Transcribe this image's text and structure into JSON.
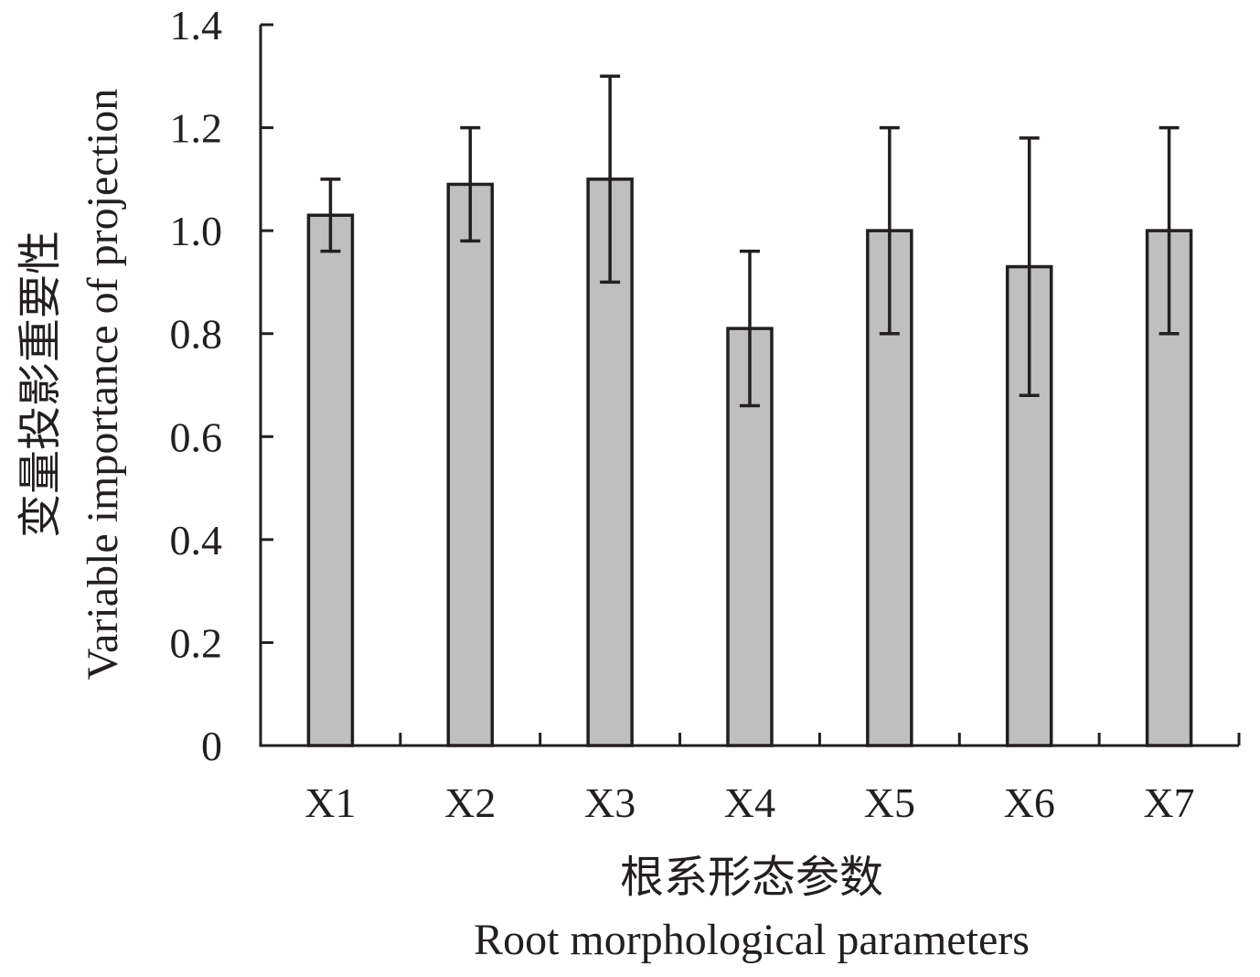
{
  "chart_data": {
    "type": "bar",
    "categories": [
      "X1",
      "X2",
      "X3",
      "X4",
      "X5",
      "X6",
      "X7"
    ],
    "values": [
      1.03,
      1.09,
      1.1,
      0.81,
      1.0,
      0.93,
      1.0
    ],
    "error_upper": [
      1.1,
      1.2,
      1.3,
      0.96,
      1.2,
      1.18,
      1.2
    ],
    "error_lower": [
      0.96,
      0.98,
      0.9,
      0.66,
      0.8,
      0.68,
      0.8
    ],
    "ylim": [
      0,
      1.4
    ],
    "yticks": [
      "0",
      "0.2",
      "0.4",
      "0.6",
      "0.8",
      "1.0",
      "1.2",
      "1.4"
    ],
    "ylabel_cn": "变量投影重要性",
    "ylabel_en": "Variable importance of projection",
    "xlabel_cn": "根系形态参数",
    "xlabel_en": "Root morphological parameters",
    "bar_color": "#bfbfbf",
    "line_color": "#231f20",
    "grid": false
  }
}
